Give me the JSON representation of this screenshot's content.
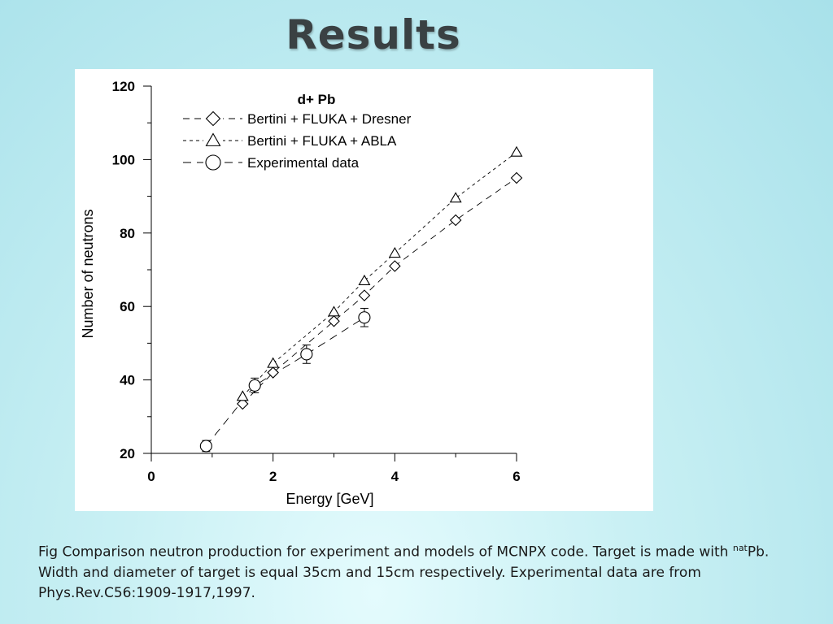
{
  "slide": {
    "title": "Results",
    "caption_part1": "Fig Comparison neutron production for experiment and models of MCNPX code. Target is made with ",
    "caption_sup": "nat",
    "caption_part2": "Pb. Width and diameter of target is equal 35cm and 15cm respectively. Experimental data are from Phys.Rev.C56:1909-1917,1997."
  },
  "chart_data": {
    "type": "line",
    "title": "d+ Pb",
    "xlabel": "Energy [GeV]",
    "ylabel": "Number of neutrons",
    "xlim": [
      0,
      6
    ],
    "ylim": [
      20,
      120
    ],
    "xticks": [
      0,
      2,
      4,
      6
    ],
    "yticks": [
      20,
      40,
      60,
      80,
      100,
      120
    ],
    "grid": false,
    "legend_position": "top-left",
    "series": [
      {
        "name": "Bertini + FLUKA + Dresner",
        "marker": "diamond",
        "line": "dash",
        "x": [
          1.5,
          2.0,
          3.0,
          3.5,
          4.0,
          5.0,
          6.0
        ],
        "y": [
          33.5,
          42.0,
          56.0,
          63.0,
          71.0,
          83.5,
          95.0
        ]
      },
      {
        "name": "Bertini + FLUKA + ABLA",
        "marker": "triangle",
        "line": "shortdash",
        "x": [
          1.5,
          2.0,
          3.0,
          3.5,
          4.0,
          5.0,
          6.0
        ],
        "y": [
          35.5,
          44.5,
          58.5,
          67.0,
          74.5,
          89.5,
          102.0
        ]
      },
      {
        "name": "Experimental data",
        "marker": "circle",
        "line": "longdash",
        "x": [
          0.9,
          1.7,
          2.55,
          3.5
        ],
        "y": [
          22.0,
          38.5,
          47.0,
          57.0
        ],
        "yerr": [
          1.5,
          2.0,
          2.5,
          2.5
        ]
      }
    ]
  }
}
